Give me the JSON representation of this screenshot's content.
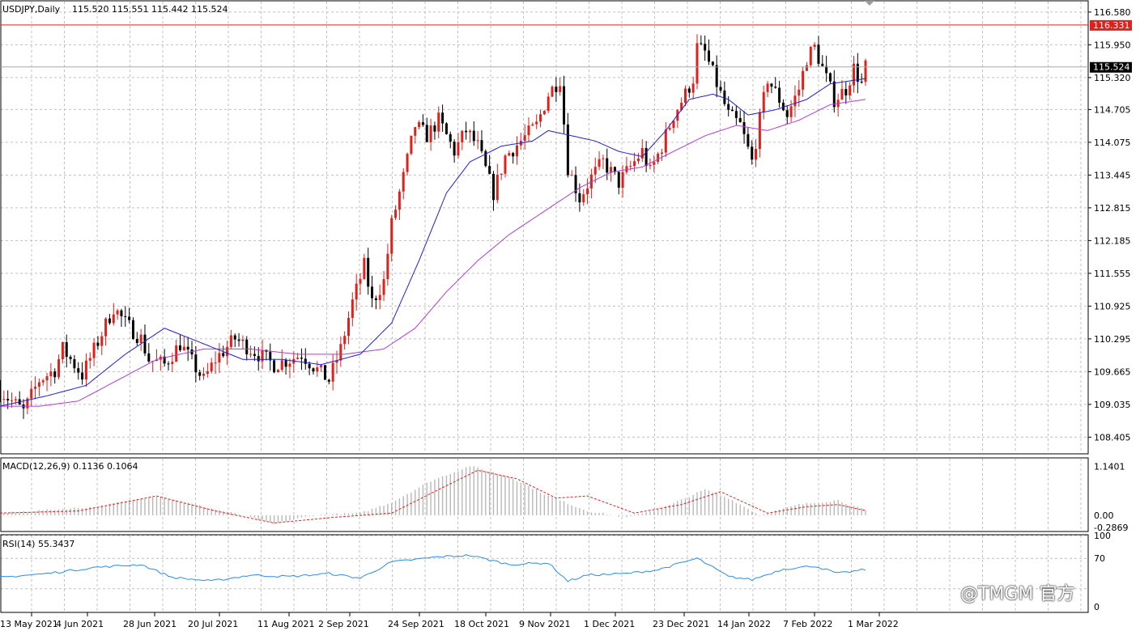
{
  "header": {
    "symbol_label": "USDJPY,Daily",
    "ohlc_label": "115.520 115.551 115.442 115.524"
  },
  "indicators": {
    "macd_label": "MACD(12,26,9) 0.1136 0.1064",
    "rsi_label": "RSI(14) 55.3437"
  },
  "watermark": "@TMGM 官方",
  "colors": {
    "grid": "#c0c0c0",
    "bull": "#e0201b",
    "bear": "#000000",
    "ma_fast": "#1f1fd8",
    "ma_slow": "#b23bd6",
    "resistance": "#e0201b",
    "current": "#a8a8a8",
    "macd_hist": "#b8b8b8",
    "macd_signal": "#e0201b",
    "rsi_line": "#2b8be6"
  },
  "chart_data": [
    {
      "type": "candlestick",
      "name": "price",
      "symbol": "USDJPY",
      "timeframe": "Daily",
      "ylim": [
        108.1,
        116.78
      ],
      "y_ticks": [
        "116.580",
        "115.950",
        "115.320",
        "114.705",
        "114.075",
        "113.445",
        "112.815",
        "112.185",
        "111.555",
        "110.925",
        "110.295",
        "109.665",
        "109.035",
        "108.405"
      ],
      "x_ticks": [
        "13 May 2021",
        "4 Jun 2021",
        "28 Jun 2021",
        "20 Jul 2021",
        "11 Aug 2021",
        "2 Sep 2021",
        "24 Sep 2021",
        "18 Oct 2021",
        "9 Nov 2021",
        "1 Dec 2021",
        "23 Dec 2021",
        "14 Jan 2022",
        "7 Feb 2022",
        "1 Mar 2022"
      ],
      "resistance_level": "116.331",
      "current_price": "115.524",
      "close_path": [
        [
          0,
          109.3
        ],
        [
          6,
          108.9
        ],
        [
          10,
          109.5
        ],
        [
          14,
          109.7
        ],
        [
          16,
          110.1
        ],
        [
          21,
          109.6
        ],
        [
          26,
          110.4
        ],
        [
          29,
          110.9
        ],
        [
          32,
          110.6
        ],
        [
          36,
          110.3
        ],
        [
          38,
          109.9
        ],
        [
          42,
          109.8
        ],
        [
          46,
          110.2
        ],
        [
          52,
          109.5
        ],
        [
          55,
          109.9
        ],
        [
          60,
          110.3
        ],
        [
          66,
          110.0
        ],
        [
          70,
          109.8
        ],
        [
          74,
          109.9
        ],
        [
          77,
          110.0
        ],
        [
          81,
          109.7
        ],
        [
          84,
          109.5
        ],
        [
          87,
          110.1
        ],
        [
          90,
          111.0
        ],
        [
          93,
          111.7
        ],
        [
          95,
          111.0
        ],
        [
          98,
          111.4
        ],
        [
          100,
          112.5
        ],
        [
          103,
          113.4
        ],
        [
          106,
          114.4
        ],
        [
          109,
          114.2
        ],
        [
          112,
          114.5
        ],
        [
          116,
          113.9
        ],
        [
          119,
          114.3
        ],
        [
          122,
          114.0
        ],
        [
          126,
          113.1
        ],
        [
          129,
          113.8
        ],
        [
          133,
          114.1
        ],
        [
          137,
          114.4
        ],
        [
          140,
          115.0
        ],
        [
          143,
          115.3
        ],
        [
          145,
          113.6
        ],
        [
          148,
          113.0
        ],
        [
          151,
          113.4
        ],
        [
          154,
          113.7
        ],
        [
          158,
          113.3
        ],
        [
          161,
          113.6
        ],
        [
          164,
          113.9
        ],
        [
          166,
          113.5
        ],
        [
          169,
          114.0
        ],
        [
          172,
          114.6
        ],
        [
          175,
          115.0
        ],
        [
          177,
          115.3
        ],
        [
          178,
          115.9
        ],
        [
          180,
          115.8
        ],
        [
          183,
          115.2
        ],
        [
          186,
          114.6
        ],
        [
          189,
          114.4
        ],
        [
          192,
          113.7
        ],
        [
          196,
          115.3
        ],
        [
          199,
          114.9
        ],
        [
          201,
          114.6
        ],
        [
          204,
          115.1
        ],
        [
          206,
          115.7
        ],
        [
          208,
          115.9
        ],
        [
          211,
          115.3
        ],
        [
          213,
          114.9
        ],
        [
          216,
          115.1
        ],
        [
          218,
          115.5
        ],
        [
          220,
          115.2
        ],
        [
          221,
          115.524
        ]
      ],
      "ma_fast_path": [
        [
          0,
          109.0
        ],
        [
          12,
          109.2
        ],
        [
          22,
          109.4
        ],
        [
          32,
          110.0
        ],
        [
          42,
          110.5
        ],
        [
          52,
          110.2
        ],
        [
          62,
          109.9
        ],
        [
          72,
          109.9
        ],
        [
          82,
          109.8
        ],
        [
          92,
          110.0
        ],
        [
          100,
          110.6
        ],
        [
          107,
          111.8
        ],
        [
          114,
          113.1
        ],
        [
          120,
          113.7
        ],
        [
          128,
          114.0
        ],
        [
          136,
          114.1
        ],
        [
          140,
          114.3
        ],
        [
          146,
          114.2
        ],
        [
          152,
          114.1
        ],
        [
          158,
          113.9
        ],
        [
          164,
          113.8
        ],
        [
          170,
          114.3
        ],
        [
          176,
          114.9
        ],
        [
          182,
          115.0
        ],
        [
          186,
          114.9
        ],
        [
          191,
          114.6
        ],
        [
          198,
          114.7
        ],
        [
          206,
          114.9
        ],
        [
          212,
          115.2
        ],
        [
          221,
          115.3
        ]
      ],
      "ma_slow_path": [
        [
          0,
          109.0
        ],
        [
          10,
          109.0
        ],
        [
          20,
          109.1
        ],
        [
          30,
          109.5
        ],
        [
          40,
          109.9
        ],
        [
          52,
          110.1
        ],
        [
          64,
          110.1
        ],
        [
          76,
          110.0
        ],
        [
          88,
          110.0
        ],
        [
          98,
          110.1
        ],
        [
          106,
          110.5
        ],
        [
          114,
          111.2
        ],
        [
          122,
          111.8
        ],
        [
          130,
          112.3
        ],
        [
          140,
          112.8
        ],
        [
          148,
          113.2
        ],
        [
          156,
          113.5
        ],
        [
          164,
          113.6
        ],
        [
          172,
          113.9
        ],
        [
          180,
          114.2
        ],
        [
          188,
          114.4
        ],
        [
          196,
          114.3
        ],
        [
          204,
          114.5
        ],
        [
          212,
          114.8
        ],
        [
          221,
          114.9
        ]
      ]
    },
    {
      "type": "histogram",
      "name": "MACD(12,26,9)",
      "values_label": "0.1136 0.1064",
      "ylim": [
        -0.36,
        1.32
      ],
      "y_ticks": [
        "1.1401",
        "0.00",
        "-0.2869"
      ],
      "hist_path": [
        [
          0,
          0.05
        ],
        [
          25,
          0.2
        ],
        [
          40,
          0.45
        ],
        [
          52,
          0.2
        ],
        [
          62,
          0.0
        ],
        [
          70,
          -0.2
        ],
        [
          80,
          0.0
        ],
        [
          92,
          0.05
        ],
        [
          100,
          0.3
        ],
        [
          110,
          0.8
        ],
        [
          120,
          1.15
        ],
        [
          130,
          0.9
        ],
        [
          140,
          0.45
        ],
        [
          150,
          0.1
        ],
        [
          160,
          -0.05
        ],
        [
          170,
          0.2
        ],
        [
          180,
          0.6
        ],
        [
          186,
          0.4
        ],
        [
          194,
          0.0
        ],
        [
          204,
          0.25
        ],
        [
          214,
          0.35
        ],
        [
          221,
          0.11
        ]
      ],
      "signal_path": [
        [
          0,
          0.05
        ],
        [
          20,
          0.1
        ],
        [
          40,
          0.45
        ],
        [
          55,
          0.1
        ],
        [
          70,
          -0.18
        ],
        [
          85,
          -0.05
        ],
        [
          100,
          0.05
        ],
        [
          112,
          0.6
        ],
        [
          122,
          1.05
        ],
        [
          132,
          0.85
        ],
        [
          142,
          0.4
        ],
        [
          150,
          0.45
        ],
        [
          162,
          0.05
        ],
        [
          174,
          0.25
        ],
        [
          184,
          0.55
        ],
        [
          196,
          0.05
        ],
        [
          206,
          0.2
        ],
        [
          214,
          0.25
        ],
        [
          221,
          0.11
        ]
      ]
    },
    {
      "type": "line",
      "name": "RSI(14)",
      "values_label": "55.3437",
      "ylim": [
        0,
        100
      ],
      "y_ticks": [
        "100",
        "70",
        "0"
      ],
      "rsi_path": [
        [
          0,
          45
        ],
        [
          12,
          50
        ],
        [
          24,
          58
        ],
        [
          36,
          62
        ],
        [
          44,
          45
        ],
        [
          54,
          40
        ],
        [
          64,
          48
        ],
        [
          74,
          46
        ],
        [
          84,
          50
        ],
        [
          92,
          44
        ],
        [
          100,
          65
        ],
        [
          112,
          72
        ],
        [
          120,
          74
        ],
        [
          130,
          62
        ],
        [
          140,
          64
        ],
        [
          145,
          40
        ],
        [
          150,
          48
        ],
        [
          160,
          50
        ],
        [
          168,
          55
        ],
        [
          178,
          70
        ],
        [
          186,
          46
        ],
        [
          192,
          42
        ],
        [
          200,
          56
        ],
        [
          208,
          60
        ],
        [
          214,
          50
        ],
        [
          221,
          55.3
        ]
      ]
    }
  ]
}
